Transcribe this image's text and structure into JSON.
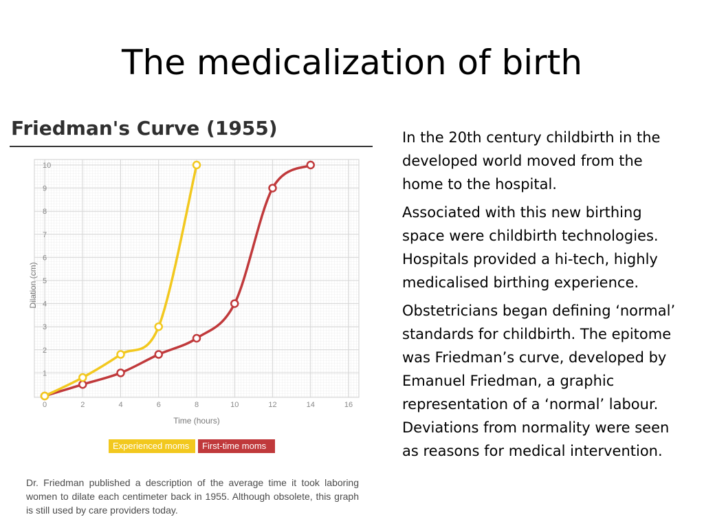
{
  "slide": {
    "title": "The medicalization of birth"
  },
  "paragraphs": [
    "In the 20th century childbirth in the developed world moved from the home to the hospital.",
    "Associated with this new birthing space were childbirth technologies. Hospitals provided a hi-tech, highly medicalised birthing experience.",
    "Obstetricians began defining ‘normal’ standards for childbirth. The epitome was Friedman’s curve, developed by Emanuel Friedman, a graphic representation of a ‘normal’ labour. Deviations from normality were seen as reasons for medical intervention."
  ],
  "chart_data": {
    "type": "line",
    "title": "Friedman's Curve (1955)",
    "xlabel": "Time (hours)",
    "ylabel": "Dilation (cm)",
    "xlim": [
      0,
      16
    ],
    "ylim": [
      0,
      10
    ],
    "x_ticks": [
      0,
      2,
      4,
      6,
      8,
      10,
      12,
      14,
      16
    ],
    "y_ticks": [
      1,
      2,
      3,
      4,
      5,
      6,
      7,
      8,
      9,
      10
    ],
    "grid": true,
    "legend_position": "bottom-center",
    "series": [
      {
        "name": "Experienced moms",
        "color": "#f2c81e",
        "points": [
          [
            0,
            0
          ],
          [
            2,
            0.8
          ],
          [
            4,
            1.8
          ],
          [
            6,
            3
          ],
          [
            8,
            10
          ]
        ]
      },
      {
        "name": "First-time moms",
        "color": "#c0393b",
        "points": [
          [
            0,
            0
          ],
          [
            2,
            0.5
          ],
          [
            4,
            1
          ],
          [
            6,
            1.8
          ],
          [
            8,
            2.5
          ],
          [
            10,
            4
          ],
          [
            12,
            9
          ],
          [
            14,
            10
          ]
        ]
      }
    ],
    "caption": "Dr. Friedman published a description of the average time it took laboring women to dilate each centimeter back in 1955. Although obsolete, this graph is still used by care providers today."
  }
}
